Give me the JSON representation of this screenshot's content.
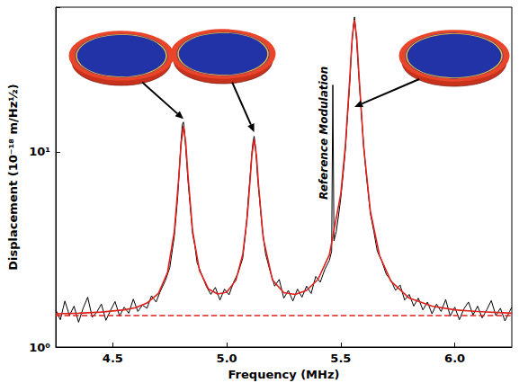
{
  "chart_data": {
    "type": "line",
    "x_label": "Frequency (MHz)",
    "y_label": "Displacement (10⁻¹⁸ m/Hz½)",
    "xlim": [
      4.25,
      6.25
    ],
    "xticks": [
      4.5,
      {
        "value": 5,
        "label": "5.0"
      },
      5.5,
      {
        "value": 6,
        "label": "6.0"
      }
    ],
    "ylim": [
      1,
      55
    ],
    "yticks": [
      {
        "value": 1,
        "label": "10⁰"
      },
      {
        "value": 10,
        "label": "10¹"
      }
    ],
    "log": "y",
    "grid": false,
    "series": [
      {
        "color": "#000000",
        "line_style": "solid",
        "x": [
          4.25,
          4.27,
          4.29,
          4.31,
          4.33,
          4.35,
          4.37,
          4.39,
          4.41,
          4.43,
          4.45,
          4.47,
          4.49,
          4.51,
          4.53,
          4.55,
          4.57,
          4.59,
          4.61,
          4.63,
          4.65,
          4.67,
          4.69,
          4.71,
          4.73,
          4.75,
          4.77,
          4.785,
          4.795,
          4.8,
          4.805,
          4.81,
          4.815,
          4.82,
          4.825,
          4.83,
          4.84,
          4.85,
          4.86,
          4.87,
          4.89,
          4.91,
          4.93,
          4.95,
          4.97,
          4.99,
          5.01,
          5.03,
          5.05,
          5.07,
          5.085,
          5.095,
          5.105,
          5.11,
          5.115,
          5.12,
          5.125,
          5.13,
          5.135,
          5.145,
          5.155,
          5.17,
          5.19,
          5.21,
          5.23,
          5.25,
          5.27,
          5.29,
          5.31,
          5.33,
          5.35,
          5.37,
          5.39,
          5.41,
          5.43,
          5.45,
          5.46,
          5.465,
          5.47,
          5.48,
          5.49,
          5.5,
          5.51,
          5.52,
          5.53,
          5.54,
          5.545,
          5.55,
          5.555,
          5.56,
          5.565,
          5.57,
          5.575,
          5.58,
          5.59,
          5.6,
          5.61,
          5.62,
          5.63,
          5.645,
          5.66,
          5.68,
          5.7,
          5.72,
          5.74,
          5.76,
          5.78,
          5.8,
          5.82,
          5.84,
          5.86,
          5.88,
          5.9,
          5.92,
          5.94,
          5.96,
          5.98,
          6.0,
          6.02,
          6.04,
          6.06,
          6.08,
          6.1,
          6.12,
          6.14,
          6.16,
          6.18,
          6.2,
          6.22,
          6.24,
          6.25
        ],
        "values": [
          1.55,
          1.38,
          1.72,
          1.45,
          1.62,
          1.34,
          1.58,
          1.8,
          1.42,
          1.51,
          1.66,
          1.37,
          1.54,
          1.71,
          1.44,
          1.6,
          1.49,
          1.76,
          1.52,
          1.64,
          1.58,
          1.83,
          1.7,
          1.95,
          2.18,
          2.55,
          3.7,
          5.9,
          9.4,
          11.5,
          13.8,
          14.2,
          12.6,
          10.4,
          8.6,
          7.1,
          5.2,
          3.8,
          3.3,
          2.7,
          2.35,
          2.05,
          1.86,
          2.02,
          1.74,
          1.98,
          1.85,
          2.15,
          2.4,
          2.85,
          4.1,
          5.9,
          8.2,
          9.9,
          11.2,
          12.0,
          10.8,
          9.1,
          7.4,
          5.5,
          4.1,
          3.0,
          2.45,
          2.05,
          2.22,
          1.78,
          1.95,
          1.72,
          1.98,
          1.8,
          2.05,
          1.88,
          2.3,
          2.15,
          2.5,
          2.78,
          3.1,
          22,
          3.5,
          3.9,
          4.7,
          5.8,
          7.6,
          10.2,
          15.5,
          23.0,
          30.5,
          37.0,
          44.0,
          49.0,
          42.5,
          36.0,
          29.0,
          23.5,
          15.8,
          10.9,
          8.0,
          6.2,
          4.8,
          3.9,
          3.1,
          2.75,
          2.35,
          2.2,
          1.95,
          2.08,
          1.74,
          1.86,
          1.62,
          1.78,
          1.55,
          1.7,
          1.48,
          1.66,
          1.52,
          1.75,
          1.44,
          1.6,
          1.38,
          1.57,
          1.7,
          1.46,
          1.62,
          1.41,
          1.55,
          1.73,
          1.45,
          1.58,
          1.36,
          1.52,
          1.6
        ]
      },
      {
        "color": "#e0201b",
        "line_style": "solid",
        "x": [
          4.25,
          4.35,
          4.45,
          4.55,
          4.6,
          4.65,
          4.7,
          4.74,
          4.77,
          4.79,
          4.8,
          4.81,
          4.82,
          4.83,
          4.85,
          4.88,
          4.92,
          4.96,
          5.0,
          5.04,
          5.07,
          5.09,
          5.1,
          5.11,
          5.12,
          5.13,
          5.14,
          5.16,
          5.2,
          5.25,
          5.3,
          5.35,
          5.4,
          5.45,
          5.5,
          5.52,
          5.54,
          5.55,
          5.56,
          5.57,
          5.58,
          5.6,
          5.63,
          5.67,
          5.72,
          5.8,
          5.9,
          6.0,
          6.1,
          6.25
        ],
        "values": [
          1.48,
          1.49,
          1.51,
          1.55,
          1.59,
          1.68,
          1.88,
          2.41,
          3.91,
          7.52,
          11.12,
          13.52,
          11.12,
          7.53,
          3.94,
          2.47,
          1.98,
          1.87,
          1.91,
          2.2,
          2.98,
          4.67,
          6.59,
          9.59,
          11.59,
          9.6,
          6.6,
          3.6,
          2.21,
          1.9,
          1.86,
          1.95,
          2.22,
          2.97,
          6.09,
          10.7,
          24.5,
          38.3,
          47.5,
          38.3,
          24.5,
          10.67,
          4.93,
          2.94,
          2.17,
          1.78,
          1.62,
          1.55,
          1.52,
          1.49
        ]
      },
      {
        "color": "#e0201b",
        "line_style": "dashed",
        "x": [
          4.25,
          6.25
        ],
        "values": [
          1.45,
          1.45
        ]
      }
    ],
    "annotations": [
      {
        "text": "Reference Modulation",
        "x": 5.425,
        "y": 12.5
      }
    ]
  }
}
